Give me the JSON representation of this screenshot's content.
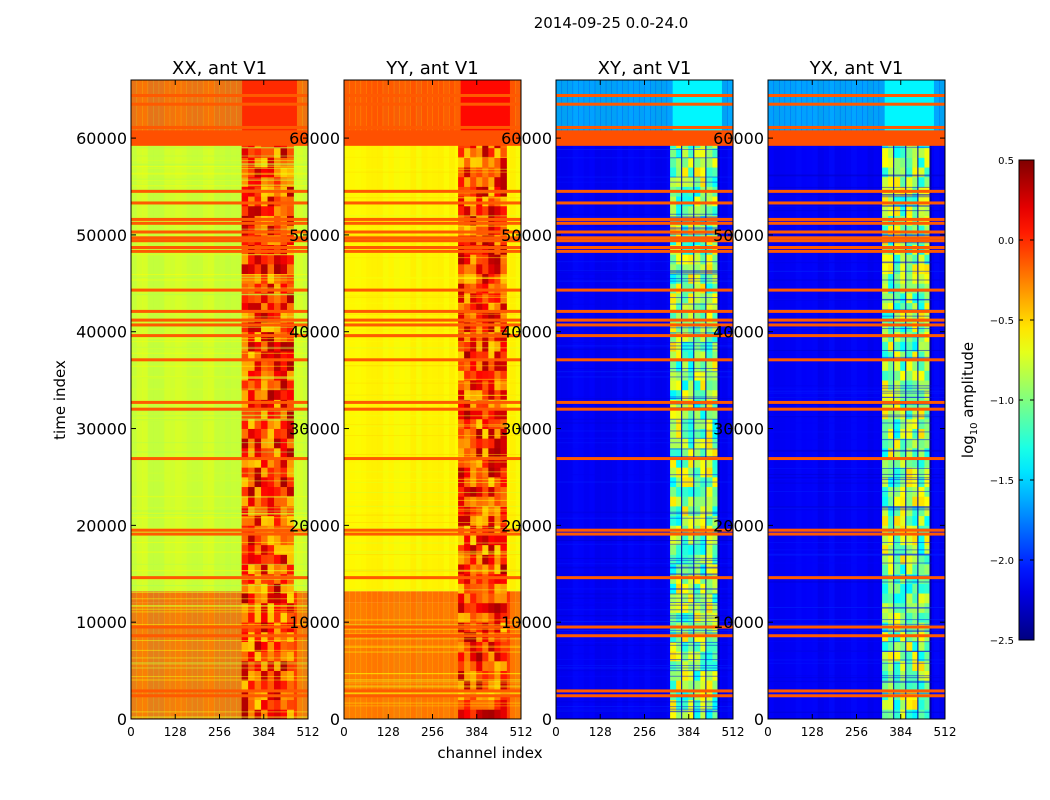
{
  "chart_data": {
    "type": "heatmap",
    "suptitle": "2014-09-25 0.0-24.0",
    "xlabel": "channel index",
    "ylabel": "time index",
    "xlim": [
      0,
      512
    ],
    "ylim": [
      0,
      66000
    ],
    "xticks": [
      "0",
      "128",
      "256",
      "384",
      "512"
    ],
    "xtick_values": [
      0,
      128,
      256,
      384,
      512
    ],
    "yticks": [
      "0",
      "10000",
      "20000",
      "30000",
      "40000",
      "50000",
      "60000"
    ],
    "ytick_values": [
      0,
      10000,
      20000,
      30000,
      40000,
      50000,
      60000
    ],
    "colorbar": {
      "label": "log10 amplitude",
      "label_main": "log",
      "label_sub": "10",
      "label_rest": " amplitude",
      "range": [
        -2.5,
        0.5
      ],
      "ticks": [
        "0.5",
        "0.0",
        "−0.5",
        "−1.0",
        "−1.5",
        "−2.0",
        "−2.5"
      ],
      "tick_values": [
        0.5,
        0.0,
        -0.5,
        -1.0,
        -1.5,
        -2.0,
        -2.5
      ],
      "colormap": "jet"
    },
    "flagged_rows": [
      2400,
      2900,
      8600,
      9500,
      14600,
      19100,
      19500,
      26900,
      32000,
      32700,
      37100,
      39600,
      40700,
      41200,
      42100,
      44300,
      48300,
      48700,
      49400,
      49700,
      50300,
      51200,
      51600,
      53300,
      54500,
      59600,
      60500,
      61100,
      63500,
      64400
    ],
    "panels": [
      {
        "title": "XX, ant V1",
        "base_level": -0.75,
        "bright_channel_range": [
          320,
          470
        ],
        "bright_level": -0.1,
        "time_segments": [
          {
            "t": [
              0,
              12000
            ],
            "level": -0.05
          },
          {
            "t": [
              12000,
              13200
            ],
            "level": -0.02
          },
          {
            "t": [
              13200,
              60000
            ],
            "level": -0.78
          },
          {
            "t": [
              60000,
              66000
            ],
            "level": 0.0
          }
        ]
      },
      {
        "title": "YY, ant V1",
        "base_level": -0.6,
        "bright_channel_range": [
          330,
          470
        ],
        "bright_level": -0.1,
        "time_segments": [
          {
            "t": [
              0,
              12000
            ],
            "level": -0.05
          },
          {
            "t": [
              12000,
              13200
            ],
            "level": -0.02
          },
          {
            "t": [
              13200,
              60000
            ],
            "level": -0.6
          },
          {
            "t": [
              60000,
              66000
            ],
            "level": 0.1
          }
        ]
      },
      {
        "title": "XY, ant V1",
        "base_level": -2.15,
        "bright_channel_range": [
          330,
          470
        ],
        "bright_level": -1.0,
        "time_segments": [
          {
            "t": [
              0,
              60000
            ],
            "level": -2.15
          },
          {
            "t": [
              60000,
              66000
            ],
            "level": -1.4
          }
        ]
      },
      {
        "title": "YX, ant V1",
        "base_level": -2.15,
        "bright_channel_range": [
          330,
          470
        ],
        "bright_level": -1.0,
        "time_segments": [
          {
            "t": [
              0,
              60000
            ],
            "level": -2.15
          },
          {
            "t": [
              60000,
              66000
            ],
            "level": -1.4
          }
        ]
      }
    ]
  }
}
